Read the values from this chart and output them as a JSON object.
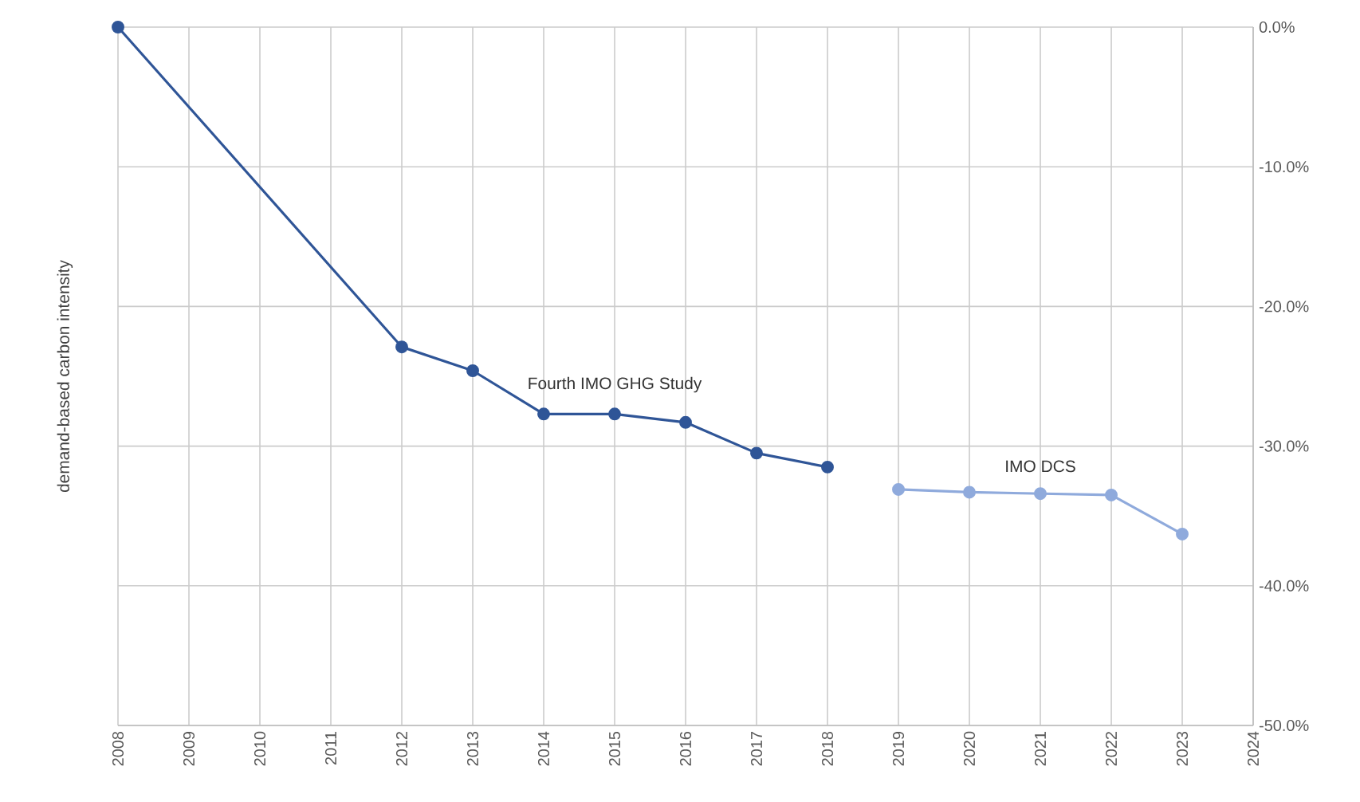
{
  "chart_data": {
    "type": "line",
    "ylabel": "demand-based carbon intensity",
    "series": [
      {
        "name": "Fourth IMO GHG Study",
        "color": "#2f5597",
        "x": [
          2008,
          2012,
          2013,
          2014,
          2015,
          2016,
          2017,
          2018
        ],
        "values": [
          0,
          -22.9,
          -24.6,
          -27.7,
          -27.7,
          -28.3,
          -30.5,
          -31.5
        ]
      },
      {
        "name": "IMO DCS",
        "color": "#8faadc",
        "x": [
          2019,
          2020,
          2021,
          2022,
          2023
        ],
        "values": [
          -33.1,
          -33.3,
          -33.4,
          -33.5,
          -36.3
        ]
      }
    ],
    "xlim": [
      2008,
      2024
    ],
    "xticks": [
      2008,
      2009,
      2010,
      2011,
      2012,
      2013,
      2014,
      2015,
      2016,
      2017,
      2018,
      2019,
      2020,
      2021,
      2022,
      2023,
      2024
    ],
    "ylim": [
      -50,
      0
    ],
    "yticks": [
      {
        "value": -50,
        "label": "-50.0%"
      },
      {
        "value": -40,
        "label": "-40.0%"
      },
      {
        "value": -30,
        "label": "-30.0%"
      },
      {
        "value": -20,
        "label": "-20.0%"
      },
      {
        "value": -10,
        "label": "-10.0%"
      },
      {
        "value": 0,
        "label": "0.0%"
      }
    ],
    "grid": true,
    "marker": "circle",
    "line_style": "solid"
  }
}
